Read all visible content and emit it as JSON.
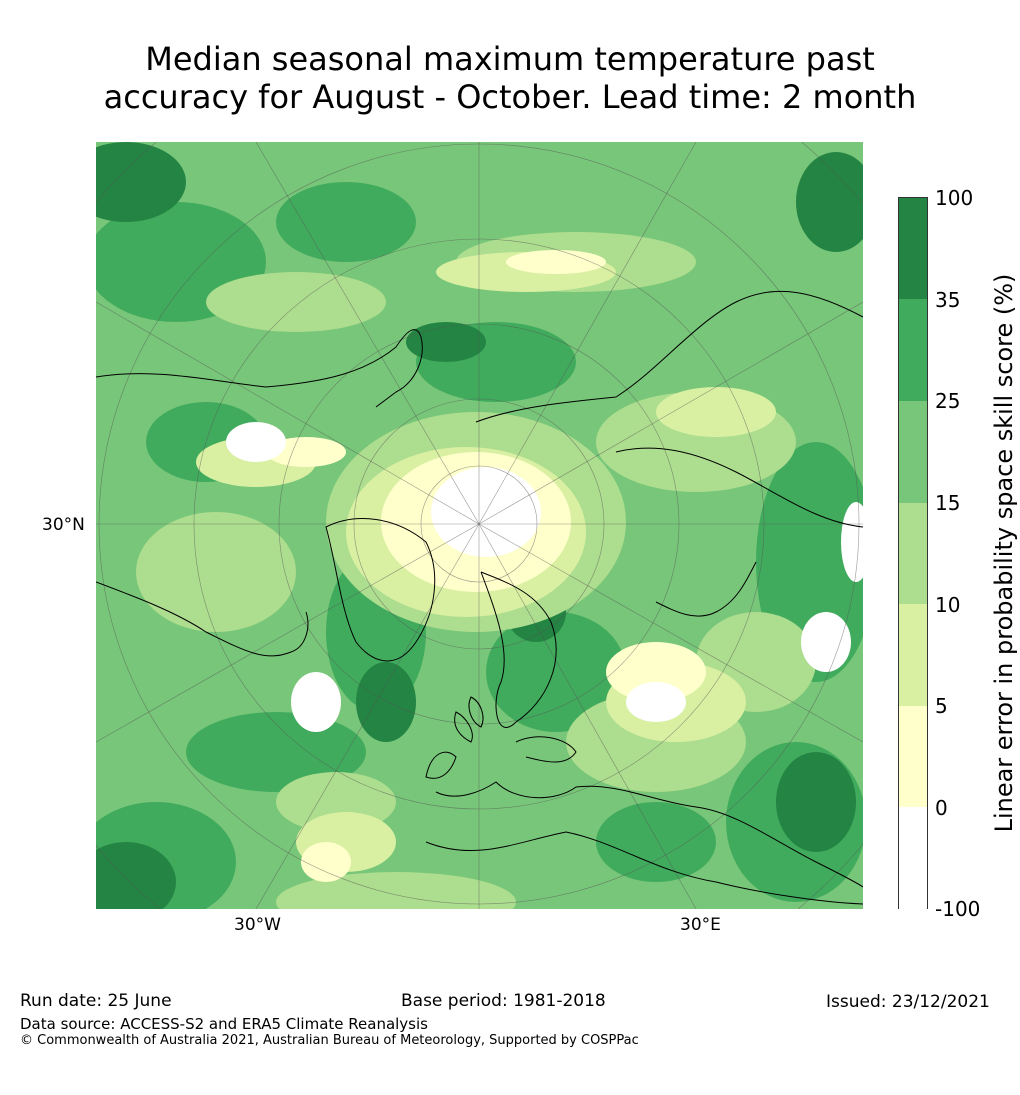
{
  "title_line1": "Median seasonal maximum temperature past",
  "title_line2": "accuracy for August - October. Lead time: 2 month",
  "axes": {
    "lat_label": "30°N",
    "lon_label_west": "30°W",
    "lon_label_east": "30°E"
  },
  "colorbar": {
    "label": "Linear error in probability space skill score (%)",
    "ticks": [
      "100",
      "35",
      "25",
      "15",
      "10",
      "5",
      "0",
      "-100"
    ],
    "colors": [
      "#ffffff",
      "#ffffcc",
      "#d9f0a3",
      "#addd8e",
      "#78c679",
      "#41ab5d",
      "#238443"
    ]
  },
  "map": {
    "projection": "north-polar-stereographic",
    "ocean_base": "#7fc97f"
  },
  "footer": {
    "run_date": "Run date: 25 June",
    "base_period": "Base period: 1981-2018",
    "issued": "Issued: 23/12/2021",
    "data_source": "Data source: ACCESS-S2 and ERA5 Climate Reanalysis",
    "copyright": "© Commonwealth of Australia 2021, Australian Bureau of Meteorology, Supported by COSPPac"
  }
}
